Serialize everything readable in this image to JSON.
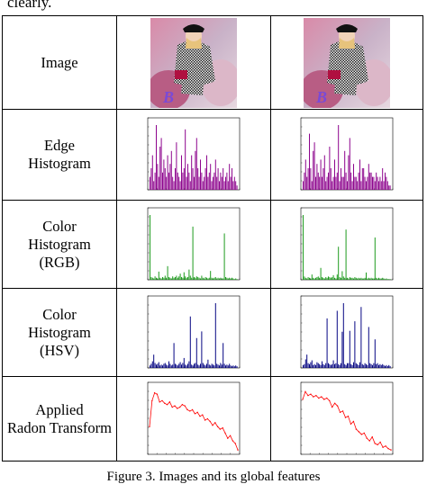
{
  "top_text": "clearly.",
  "caption": "Figure 3. Images and its global features",
  "rows": [
    {
      "label_lines": [
        "Image"
      ]
    },
    {
      "label_lines": [
        "Edge",
        "Histogram"
      ]
    },
    {
      "label_lines": [
        "Color",
        "Histogram",
        "(RGB)"
      ]
    },
    {
      "label_lines": [
        "Color",
        "Histogram",
        "(HSV)"
      ]
    },
    {
      "label_lines": [
        "Applied",
        "Radon Transform"
      ]
    }
  ],
  "image_watermark": "B",
  "colors": {
    "edge": "#8b008b",
    "rgb": "#1a9a1a",
    "hsv": "#000080",
    "radon": "#ff0000",
    "border": "#000000"
  },
  "chart_data": [
    {
      "type": "bar",
      "name": "edge-histogram-left",
      "color": "#8b008b",
      "values": [
        3,
        5,
        8,
        2,
        4,
        15,
        6,
        3,
        10,
        12,
        4,
        7,
        5,
        3,
        8,
        4,
        6,
        9,
        3,
        2,
        5,
        11,
        4,
        3,
        2,
        8,
        4,
        5,
        14,
        3,
        6,
        4,
        2,
        8,
        5,
        3,
        9,
        12,
        5,
        3,
        7,
        4,
        2,
        3,
        5,
        8,
        3,
        4,
        6,
        2,
        3,
        4,
        7,
        3,
        5,
        2,
        4,
        3,
        5,
        2,
        3,
        4,
        2,
        6,
        3,
        5,
        2,
        3,
        2,
        1
      ]
    },
    {
      "type": "bar",
      "name": "edge-histogram-right",
      "color": "#8b008b",
      "values": [
        2,
        4,
        7,
        3,
        5,
        13,
        5,
        2,
        9,
        11,
        3,
        6,
        4,
        3,
        7,
        3,
        5,
        8,
        2,
        3,
        4,
        10,
        5,
        2,
        3,
        7,
        3,
        4,
        15,
        2,
        5,
        3,
        3,
        9,
        4,
        2,
        8,
        12,
        4,
        2,
        6,
        3,
        3,
        2,
        4,
        7,
        2,
        5,
        5,
        3,
        2,
        3,
        6,
        4,
        4,
        3,
        3,
        2,
        4,
        3,
        2,
        3,
        2,
        5,
        2,
        4,
        3,
        2,
        1,
        1
      ]
    },
    {
      "type": "bar",
      "name": "rgb-histogram-left",
      "color": "#1a9a1a",
      "values": [
        9.5,
        0.4,
        0.3,
        0.2,
        0.5,
        0.3,
        0.2,
        1.2,
        0.3,
        0.2,
        0.4,
        0.3,
        0.6,
        0.3,
        2.0,
        0.4,
        0.3,
        0.2,
        0.5,
        0.3,
        0.4,
        0.6,
        0.3,
        0.5,
        0.9,
        0.4,
        0.3,
        1.1,
        0.5,
        0.3,
        0.4,
        1.5,
        0.6,
        0.3,
        7.8,
        0.4,
        0.3,
        0.5,
        0.4,
        0.3,
        0.2,
        0.6,
        0.3,
        0.2,
        0.4,
        0.3,
        0.2,
        0.3,
        1.3,
        0.3,
        0.2,
        0.3,
        0.4,
        0.2,
        0.3,
        0.2,
        0.3,
        0.2,
        0.2,
        6.8,
        0.4,
        0.3,
        0.2,
        0.3,
        0.2,
        0.3,
        0.2,
        0.1,
        0.2,
        0.1
      ]
    },
    {
      "type": "bar",
      "name": "rgb-histogram-right",
      "color": "#1a9a1a",
      "values": [
        9.8,
        0.5,
        0.3,
        0.2,
        0.4,
        0.3,
        0.2,
        0.8,
        0.3,
        0.2,
        0.3,
        0.4,
        0.5,
        0.3,
        1.8,
        0.4,
        0.3,
        0.2,
        0.4,
        0.3,
        0.5,
        0.4,
        0.3,
        0.4,
        0.7,
        0.3,
        0.2,
        0.8,
        5.0,
        0.4,
        0.3,
        1.3,
        0.5,
        0.3,
        7.6,
        0.3,
        0.2,
        0.4,
        0.3,
        0.3,
        0.2,
        0.4,
        0.3,
        0.2,
        0.3,
        0.2,
        0.3,
        0.2,
        0.2,
        0.3,
        1.1,
        0.2,
        0.3,
        0.2,
        0.3,
        0.2,
        0.2,
        6.4,
        0.3,
        0.2,
        0.3,
        0.2,
        0.2,
        0.3,
        0.2,
        0.1,
        0.2,
        0.1,
        0.1,
        0.1
      ]
    },
    {
      "type": "bar",
      "name": "hsv-histogram-left",
      "color": "#000080",
      "values": [
        0.3,
        0.5,
        0.8,
        1.6,
        0.6,
        0.4,
        0.5,
        0.7,
        0.3,
        0.4,
        0.3,
        0.5,
        0.6,
        0.4,
        0.3,
        0.8,
        0.5,
        0.3,
        0.4,
        3.0,
        0.5,
        0.4,
        0.3,
        0.5,
        0.7,
        0.4,
        0.6,
        1.2,
        0.4,
        0.3,
        0.5,
        0.8,
        6.2,
        0.4,
        0.3,
        0.5,
        0.6,
        3.6,
        0.4,
        0.3,
        0.5,
        4.4,
        0.6,
        0.4,
        0.3,
        0.5,
        1.0,
        0.4,
        0.3,
        0.5,
        0.4,
        0.3,
        7.8,
        0.5,
        0.4,
        0.3,
        0.6,
        0.4,
        3.0,
        0.5,
        0.3,
        0.4,
        0.3,
        0.5,
        0.3,
        0.2,
        0.3,
        0.2,
        0.3,
        0.2
      ]
    },
    {
      "type": "bar",
      "name": "hsv-histogram-right",
      "color": "#000080",
      "values": [
        0.3,
        0.4,
        0.9,
        1.4,
        0.5,
        0.4,
        0.6,
        0.8,
        0.3,
        0.4,
        0.3,
        0.6,
        0.5,
        0.4,
        0.3,
        0.7,
        0.4,
        0.3,
        0.5,
        5.2,
        0.5,
        0.4,
        0.3,
        0.4,
        0.8,
        0.4,
        0.5,
        6.0,
        0.4,
        0.3,
        0.5,
        3.8,
        6.8,
        0.4,
        0.3,
        0.5,
        0.5,
        3.9,
        0.4,
        0.3,
        0.6,
        4.9,
        0.5,
        0.4,
        0.3,
        0.6,
        6.4,
        0.4,
        0.3,
        0.5,
        0.4,
        0.3,
        4.3,
        0.5,
        0.4,
        0.3,
        0.5,
        3.0,
        0.4,
        0.5,
        0.3,
        0.4,
        0.3,
        0.4,
        0.3,
        0.2,
        0.3,
        0.2,
        0.3,
        0.2
      ]
    },
    {
      "type": "line",
      "name": "radon-left",
      "color": "#ff0000",
      "values": [
        0.4,
        0.8,
        0.92,
        0.9,
        0.78,
        0.8,
        0.76,
        0.74,
        0.78,
        0.7,
        0.72,
        0.68,
        0.7,
        0.74,
        0.72,
        0.66,
        0.64,
        0.66,
        0.6,
        0.62,
        0.56,
        0.58,
        0.5,
        0.52,
        0.48,
        0.42,
        0.46,
        0.4,
        0.36,
        0.38,
        0.3,
        0.22,
        0.26,
        0.18,
        0.14,
        0.04
      ]
    },
    {
      "type": "line",
      "name": "radon-right",
      "color": "#ff0000",
      "values": [
        0.82,
        0.94,
        0.88,
        0.9,
        0.86,
        0.88,
        0.84,
        0.86,
        0.82,
        0.84,
        0.8,
        0.7,
        0.76,
        0.72,
        0.62,
        0.64,
        0.54,
        0.56,
        0.44,
        0.48,
        0.36,
        0.32,
        0.28,
        0.3,
        0.22,
        0.18,
        0.24,
        0.14,
        0.12,
        0.16,
        0.08,
        0.1,
        0.06,
        0.04
      ]
    }
  ]
}
